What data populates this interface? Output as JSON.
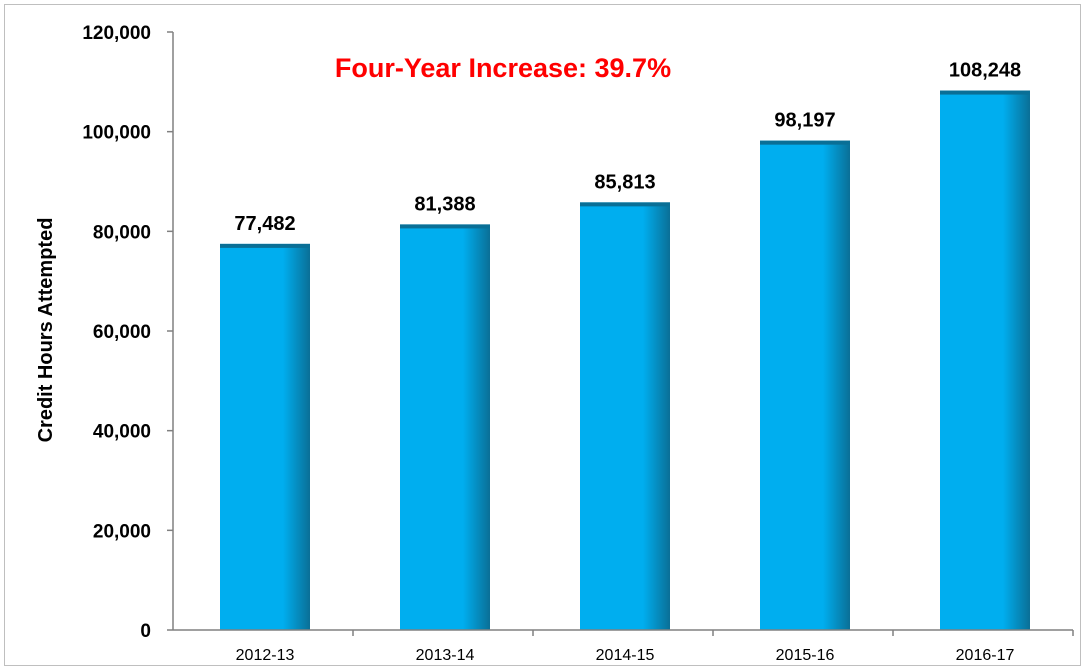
{
  "chart_data": {
    "type": "bar",
    "title": "",
    "xlabel": "",
    "ylabel": "Credit Hours Attempted",
    "categories": [
      "2012-13",
      "2013-14",
      "2014-15",
      "2015-16",
      "2016-17"
    ],
    "values": [
      77482,
      81388,
      85813,
      98197,
      108248
    ],
    "data_labels": [
      "77,482",
      "81,388",
      "85,813",
      "98,197",
      "108,248"
    ],
    "y_ticks": [
      0,
      20000,
      40000,
      60000,
      80000,
      100000,
      120000
    ],
    "y_tick_labels": [
      "0",
      "20,000",
      "40,000",
      "60,000",
      "80,000",
      "100,000",
      "120,000"
    ],
    "ylim": [
      0,
      120000
    ],
    "grid": false,
    "legend": "none",
    "annotation": "Four-Year Increase:  39.7%",
    "colors": {
      "bar": "#00AEEF",
      "bar_shade": "#0a6f96",
      "annotation": "#FF0000",
      "axis": "#808080"
    }
  }
}
